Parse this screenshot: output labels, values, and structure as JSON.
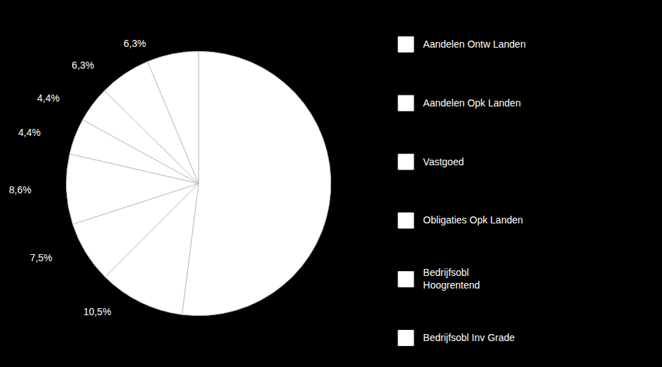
{
  "chart_data": {
    "type": "pie",
    "values": [
      52.0,
      10.5,
      7.5,
      8.6,
      4.4,
      4.4,
      6.3,
      6.3
    ],
    "value_labels": [
      null,
      "10,5%",
      "7,5%",
      "8,6%",
      "4,4%",
      "4,4%",
      "6,3%",
      "6,3%"
    ],
    "data_labels": true,
    "colors": [
      "#ffffff",
      "#ffffff",
      "#ffffff",
      "#ffffff",
      "#ffffff",
      "#ffffff",
      "#ffffff",
      "#ffffff"
    ],
    "legend": "right",
    "annotations": [
      "Aandelen Ontw Landen",
      "Aandelen Opk Landen",
      "Vastgoed",
      "Obligaties Opk Landen",
      "Bedrijfsobl\nHoogrentend",
      "Bedrijfsobl Inv Grade"
    ]
  }
}
